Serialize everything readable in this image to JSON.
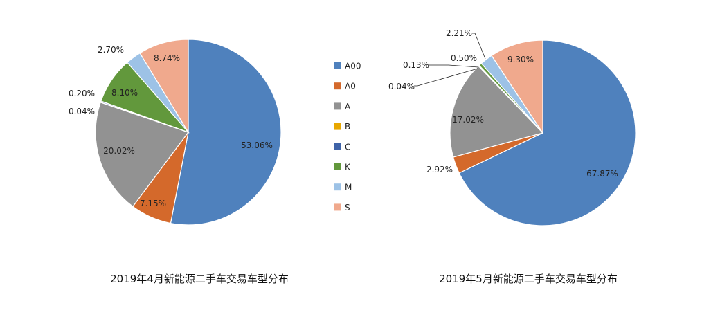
{
  "legend": {
    "items": [
      {
        "label": "A00",
        "color": "#4f81bd"
      },
      {
        "label": "A0",
        "color": "#d4692b"
      },
      {
        "label": "A",
        "color": "#929292"
      },
      {
        "label": "B",
        "color": "#e8a700"
      },
      {
        "label": "C",
        "color": "#3f63a8"
      },
      {
        "label": "K",
        "color": "#62983c"
      },
      {
        "label": "M",
        "color": "#9dc2e6"
      },
      {
        "label": "S",
        "color": "#f0a98d"
      }
    ]
  },
  "chart_data": [
    {
      "type": "pie",
      "title": "2019年4月新能源二手车交易车型分布",
      "categories": [
        "A00",
        "A0",
        "A",
        "B",
        "C",
        "K",
        "M",
        "S"
      ],
      "values": [
        53.06,
        7.15,
        20.02,
        0.04,
        0.2,
        8.1,
        2.7,
        8.74
      ],
      "labels": [
        "53.06%",
        "7.15%",
        "20.02%",
        "0.04%",
        "0.20%",
        "8.10%",
        "2.70%",
        "8.74%"
      ],
      "legend": "right"
    },
    {
      "type": "pie",
      "title": "2019年5月新能源二手车交易车型分布",
      "categories": [
        "A00",
        "A0",
        "A",
        "B",
        "C",
        "K",
        "M",
        "S"
      ],
      "values": [
        67.87,
        2.92,
        17.02,
        0.04,
        0.13,
        0.5,
        2.21,
        9.3
      ],
      "labels": [
        "67.87%",
        "2.92%",
        "17.02%",
        "0.04%",
        "0.13%",
        "0.50%",
        "2.21%",
        "9.30%"
      ]
    }
  ]
}
